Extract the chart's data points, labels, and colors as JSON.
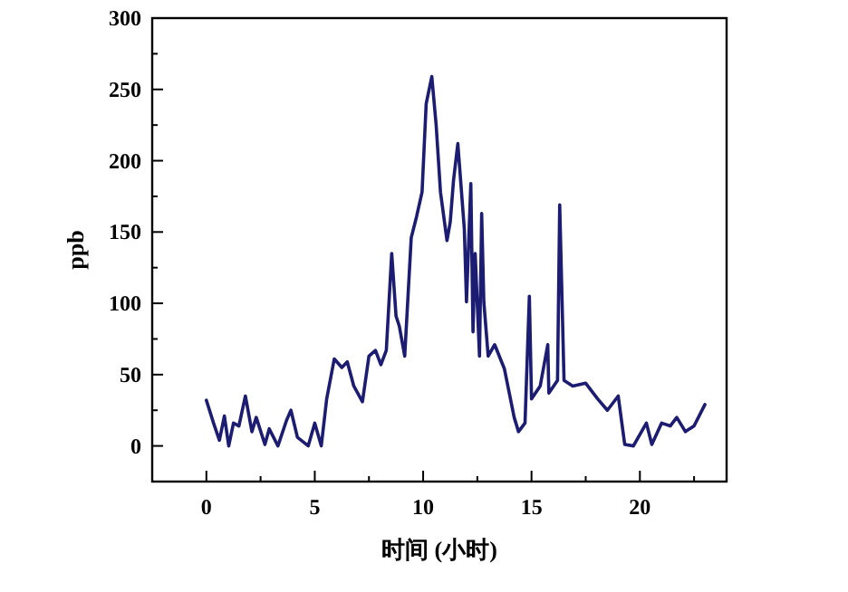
{
  "chart_data": {
    "type": "line",
    "xlabel": "时间 (小时)",
    "ylabel": "ppb",
    "xlim": [
      -2.5,
      24
    ],
    "ylim": [
      -25,
      300
    ],
    "xticks": [
      0,
      {
        "value": 2.5,
        "label": null
      },
      5,
      {
        "value": 7.5,
        "label": null
      },
      10,
      {
        "value": 12.5,
        "label": null
      },
      15,
      {
        "value": 17.5,
        "label": null
      },
      20,
      {
        "value": 22.5,
        "label": null
      }
    ],
    "yticks": [
      0,
      {
        "value": 25,
        "label": null
      },
      50,
      {
        "value": 75,
        "label": null
      },
      100,
      {
        "value": 125,
        "label": null
      },
      150,
      {
        "value": 175,
        "label": null
      },
      200,
      {
        "value": 225,
        "label": null
      },
      250,
      {
        "value": 275,
        "label": null
      },
      300
    ],
    "grid": false,
    "marker": "none",
    "line_style": "solid",
    "series": [
      {
        "color": "#1c1c72",
        "x": [
          0,
          0.33,
          0.6,
          0.83,
          1.03,
          1.25,
          1.5,
          1.8,
          2.1,
          2.3,
          2.7,
          2.9,
          3.3,
          3.7,
          3.9,
          4.2,
          4.7,
          5.0,
          5.3,
          5.55,
          5.9,
          6.25,
          6.5,
          6.8,
          7.2,
          7.5,
          7.8,
          8.05,
          8.3,
          8.55,
          8.75,
          8.9,
          9.15,
          9.45,
          9.7,
          9.95,
          10.14,
          10.4,
          10.6,
          10.8,
          11.1,
          11.25,
          11.4,
          11.6,
          11.75,
          11.9,
          12.0,
          12.2,
          12.3,
          12.4,
          12.6,
          12.7,
          12.8,
          13.0,
          13.3,
          13.75,
          14.2,
          14.4,
          14.7,
          14.9,
          15.0,
          15.4,
          15.75,
          15.8,
          16.2,
          16.3,
          16.5,
          16.9,
          17.5,
          18.05,
          18.5,
          19.0,
          19.3,
          19.7,
          20.3,
          20.55,
          21.0,
          21.4,
          21.7,
          22.1,
          22.5,
          23.0
        ],
        "values": [
          32,
          16,
          4,
          21,
          0,
          16,
          14,
          35,
          10,
          20,
          1,
          12,
          0,
          18,
          25,
          6,
          0,
          16,
          0,
          33,
          61,
          55,
          59,
          42,
          31,
          63,
          67,
          57,
          67,
          135,
          91,
          84,
          63,
          146,
          161,
          178,
          240,
          259,
          225,
          178,
          144,
          157,
          186,
          212,
          182,
          152,
          101,
          184,
          80,
          135,
          63,
          163,
          101,
          63,
          71,
          54,
          20,
          10,
          16,
          105,
          33,
          42,
          71,
          37,
          46,
          169,
          46,
          42,
          44,
          33,
          25,
          35,
          1,
          0,
          16,
          1,
          16,
          14,
          20,
          10,
          14,
          29
        ]
      }
    ]
  }
}
